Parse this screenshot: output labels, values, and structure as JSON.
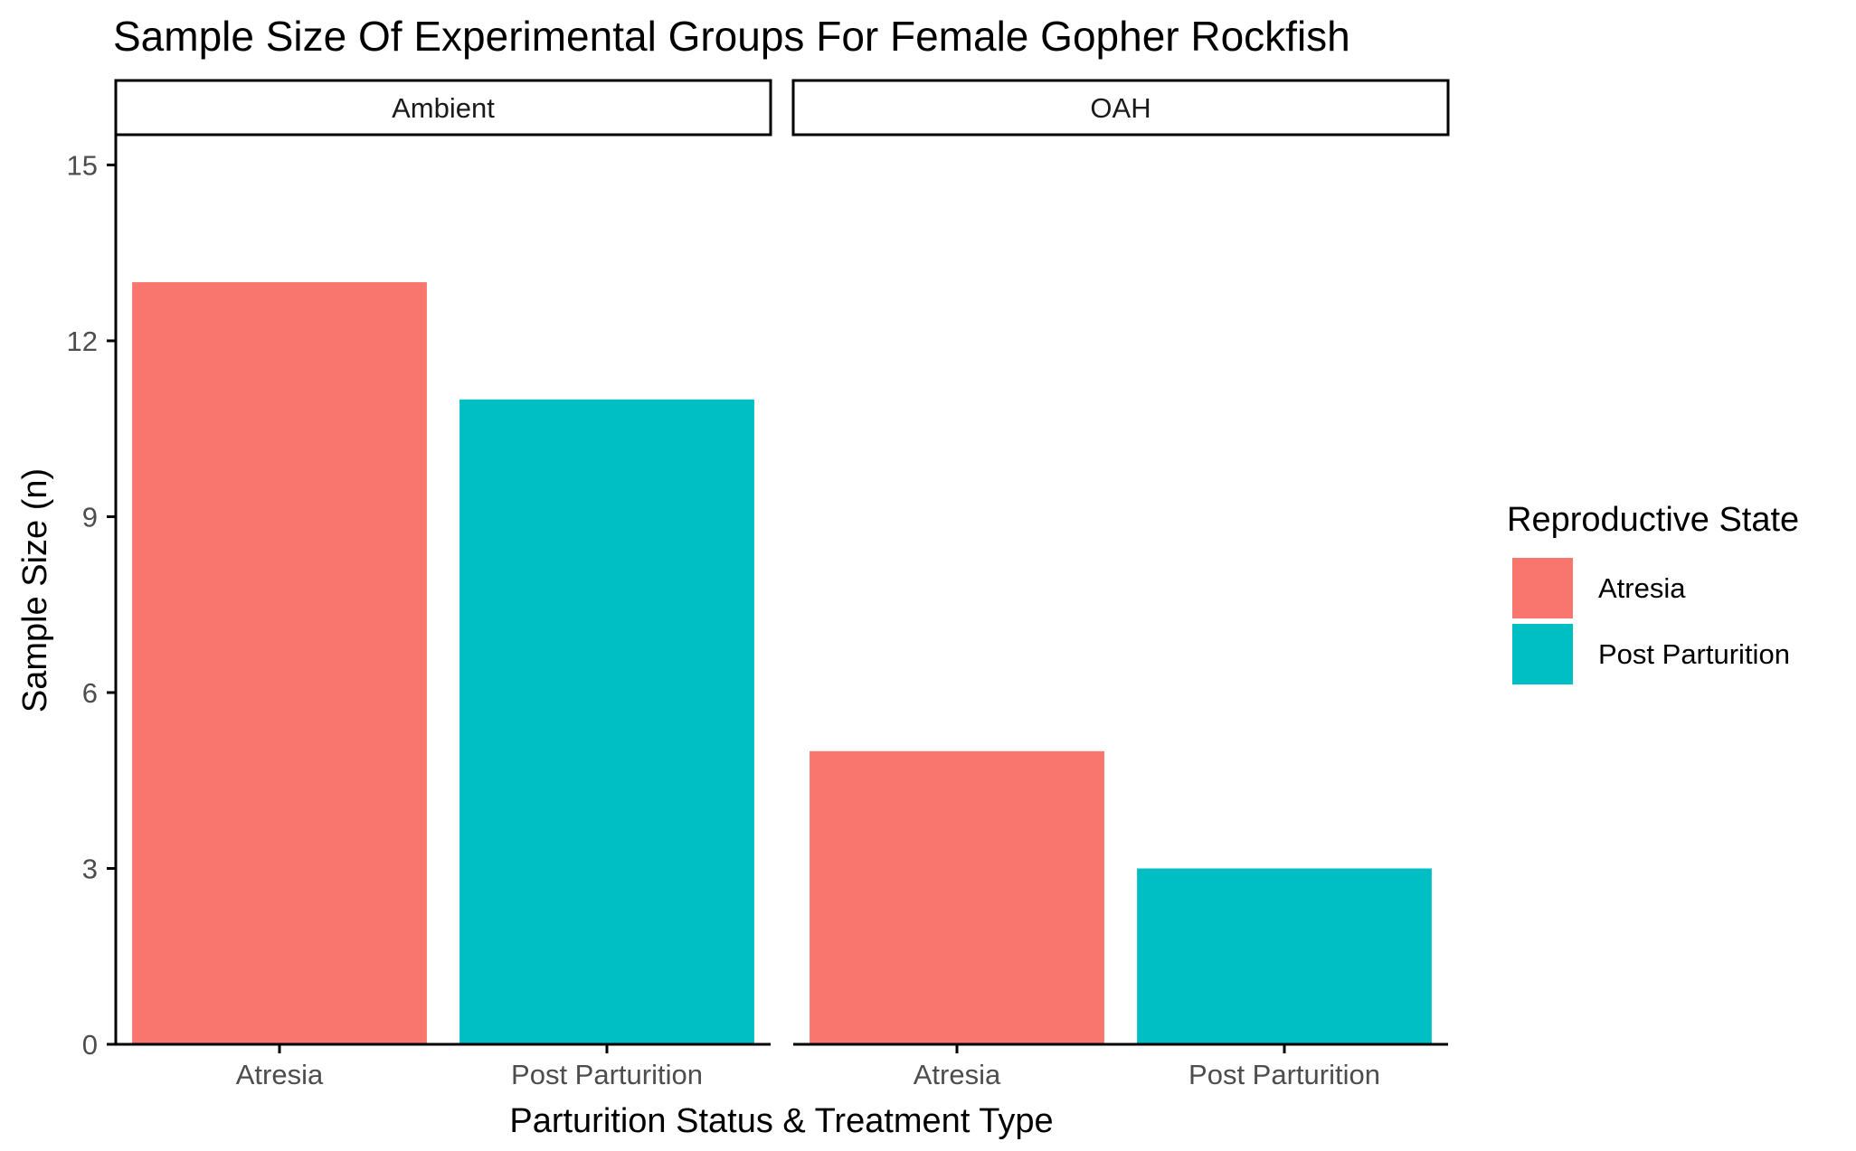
{
  "chart_data": {
    "type": "bar",
    "title": "Sample Size Of Experimental Groups For Female Gopher Rockfish",
    "xlabel": "Parturition Status & Treatment Type",
    "ylabel": "Sample Size (n)",
    "ylim": [
      0,
      15.5
    ],
    "yticks": [
      0,
      3,
      6,
      9,
      12,
      15
    ],
    "grid": false,
    "legend": {
      "title": "Reproductive State",
      "placement": "right",
      "entries": [
        {
          "label": "Atresia",
          "color": "#F8766D"
        },
        {
          "label": "Post Parturition",
          "color": "#00BFC4"
        }
      ]
    },
    "categories": [
      "Atresia",
      "Post Parturition"
    ],
    "facets": [
      {
        "label": "Ambient",
        "values": [
          13,
          11
        ]
      },
      {
        "label": "OAH",
        "values": [
          5,
          3
        ]
      }
    ],
    "colors": {
      "Atresia": "#F8766D",
      "Post Parturition": "#00BFC4",
      "axis": "#000000",
      "tick_label": "#4D4D4D",
      "text": "#000000"
    }
  }
}
